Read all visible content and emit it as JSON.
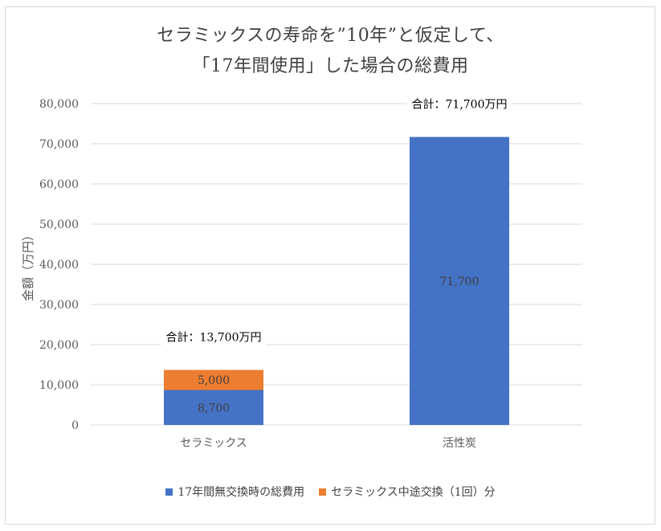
{
  "chart_data": {
    "type": "bar",
    "stacked": true,
    "title": "セラミックスの寿命を”10年”と仮定して、",
    "subtitle": "「17年間使用」した場合の総費用",
    "ylabel": "金額（万円）",
    "xlabel": "",
    "ylim": [
      0,
      80000
    ],
    "yticks": [
      0,
      10000,
      20000,
      30000,
      40000,
      50000,
      60000,
      70000,
      80000
    ],
    "ytick_labels": [
      "0",
      "10,000",
      "20,000",
      "30,000",
      "40,000",
      "50,000",
      "60,000",
      "70,000",
      "80,000"
    ],
    "categories": [
      "セラミックス",
      "活性炭"
    ],
    "series": [
      {
        "name": "17年間無交換時の総費用",
        "color": "#4472c4",
        "values": [
          8700,
          71700
        ],
        "labels": [
          "8,700",
          "71,700"
        ]
      },
      {
        "name": "セラミックス中途交換（1回）分",
        "color": "#ed7d31",
        "values": [
          5000,
          0
        ],
        "labels": [
          "5,000",
          ""
        ]
      }
    ],
    "totals": [
      "合計：13,700万円",
      "合計：71,700万円"
    ],
    "grid": true,
    "legend_position": "bottom"
  }
}
